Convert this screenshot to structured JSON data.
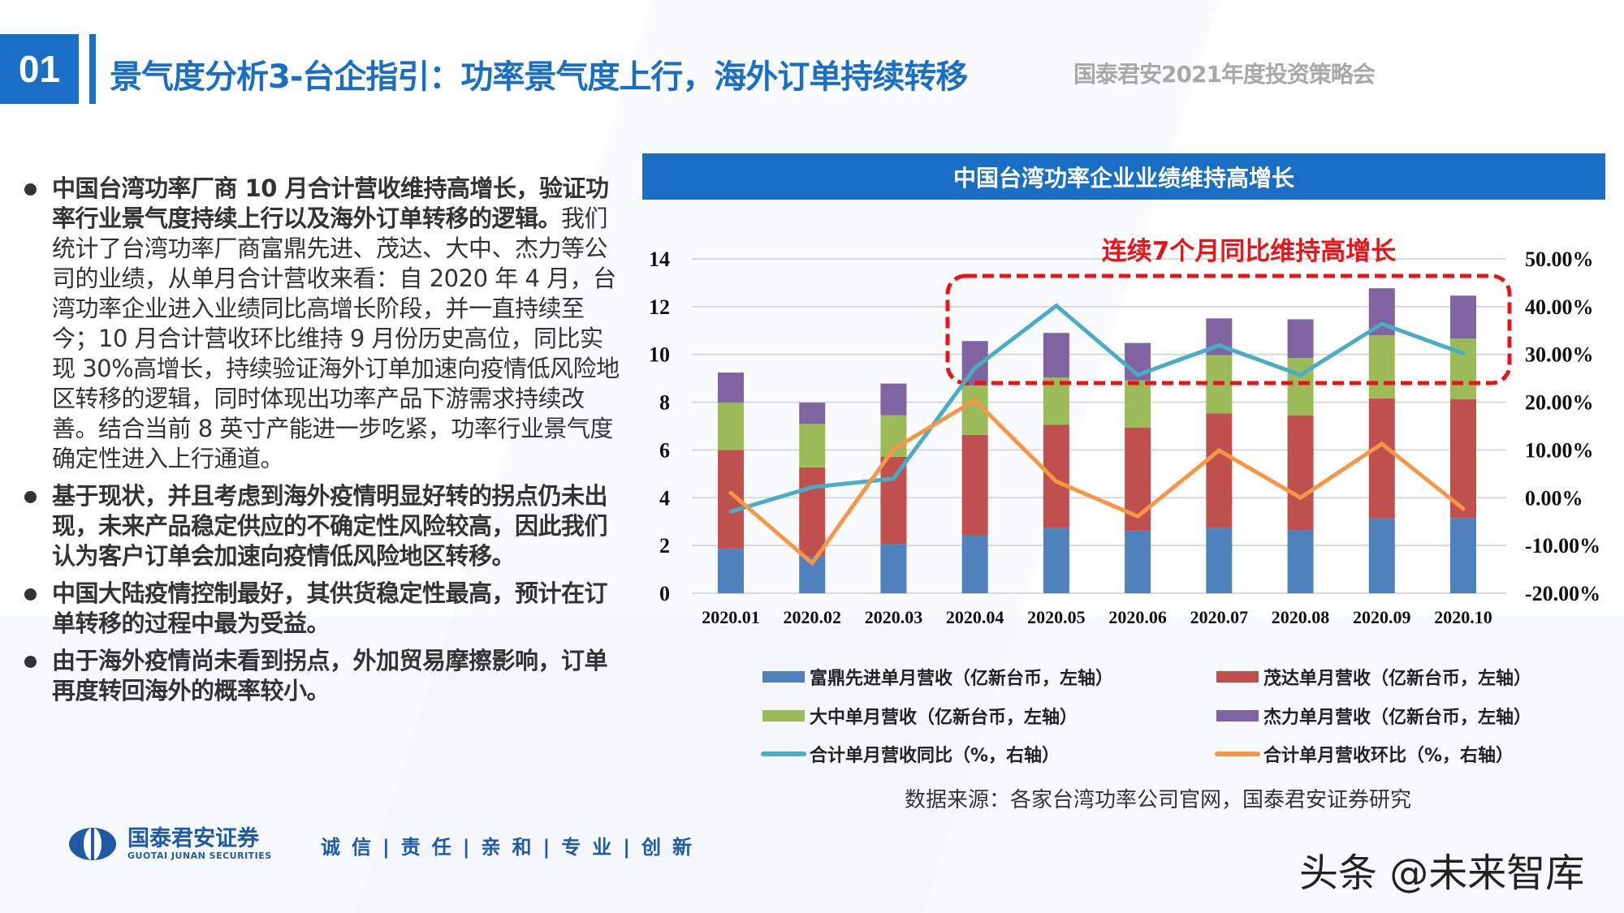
{
  "header": {
    "number": "01",
    "title": "景气度分析3-台企指引：功率景气度上行，海外订单持续转移",
    "event": "国泰君安2021年度投资策略会"
  },
  "bullets": [
    {
      "bold": "中国台湾功率厂商 10 月合计营收维持高增长，验证功率行业景气度持续上行以及海外订单转移的逻辑。",
      "text": "我们统计了台湾功率厂商富鼎先进、茂达、大中、杰力等公司的业绩，从单月合计营收来看：自 2020 年 4 月，台湾功率企业进入业绩同比高增长阶段，并一直持续至今；10 月合计营收环比维持 9 月份历史高位，同比实现 30%高增长，持续验证海外订单加速向疫情低风险地区转移的逻辑，同时体现出功率产品下游需求持续改善。结合当前 8 英寸产能进一步吃紧，功率行业景气度确定性进入上行通道。"
    },
    {
      "bold": "基于现状，并且考虑到海外疫情明显好转的拐点仍未出现，未来产品稳定供应的不确定性风险较高，因此我们认为客户订单会加速向疫情低风险地区转移。",
      "text": ""
    },
    {
      "bold": "中国大陆疫情控制最好，其供货稳定性最高，预计在订单转移的过程中最为受益。",
      "text": ""
    },
    {
      "bold": "由于海外疫情尚未看到拐点，外加贸易摩擦影响，订单再度转回海外的概率较小。",
      "text": ""
    }
  ],
  "chart_data": {
    "type": "bar",
    "title": "中国台湾功率企业业绩维持高增长",
    "annotation": "连续7个月同比维持高增长",
    "stacked": true,
    "categories": [
      "2020.01",
      "2020.02",
      "2020.03",
      "2020.04",
      "2020.05",
      "2020.06",
      "2020.07",
      "2020.08",
      "2020.09",
      "2020.10"
    ],
    "y_left": {
      "range": [
        0,
        14
      ],
      "ticks": [
        "0",
        "2",
        "4",
        "6",
        "8",
        "10",
        "12",
        "14"
      ]
    },
    "y_right": {
      "range": [
        -20,
        50
      ],
      "ticks": [
        "-20.00%",
        "-10.00%",
        "0.00%",
        "10.00%",
        "20.00%",
        "30.00%",
        "40.00%",
        "50.00%"
      ]
    },
    "grid": true,
    "legend_position": "bottom",
    "series": [
      {
        "name": "富鼎先进单月营收（亿新台币，左轴）",
        "type": "bar",
        "axis": "left",
        "color": "#4f81bd",
        "values": [
          1.86,
          1.55,
          2.06,
          2.43,
          2.74,
          2.61,
          2.74,
          2.65,
          3.13,
          3.15
        ]
      },
      {
        "name": "茂达单月营收（亿新台币，左轴）",
        "type": "bar",
        "axis": "left",
        "color": "#c0504d",
        "values": [
          4.14,
          3.72,
          3.65,
          4.2,
          4.31,
          4.33,
          4.79,
          4.8,
          5.03,
          4.98
        ]
      },
      {
        "name": "大中单月营收（亿新台币，左轴）",
        "type": "bar",
        "axis": "left",
        "color": "#9bbb59",
        "values": [
          1.98,
          1.83,
          1.74,
          2.07,
          1.99,
          1.98,
          2.44,
          2.4,
          2.64,
          2.54
        ]
      },
      {
        "name": "杰力单月营收（亿新台币，左轴）",
        "type": "bar",
        "axis": "left",
        "color": "#8064a2",
        "values": [
          1.26,
          0.88,
          1.33,
          1.86,
          1.86,
          1.56,
          1.54,
          1.62,
          1.97,
          1.79
        ]
      },
      {
        "name": "合计单月营收同比（%，右轴）",
        "type": "line",
        "axis": "right",
        "color": "#4bacc6",
        "values": [
          -2.9,
          2.2,
          4.0,
          27.2,
          40.2,
          25.7,
          31.9,
          25.7,
          36.4,
          30.2
        ]
      },
      {
        "name": "合计单月营收环比（%，右轴）",
        "type": "line",
        "axis": "right",
        "color": "#f79646",
        "values": [
          1.0,
          -13.7,
          10.2,
          20.4,
          3.4,
          -3.9,
          9.9,
          0.0,
          11.3,
          -2.3
        ]
      }
    ]
  },
  "source": "数据来源：各家台湾功率公司官网，国泰君安证券研究",
  "footer": {
    "logo_name": "国泰君安证券",
    "logo_en": "GUOTAI JUNAN SECURITIES",
    "slogan": "诚信|责任|亲和|专业|创新"
  },
  "watermark": "头条 @未来智库"
}
